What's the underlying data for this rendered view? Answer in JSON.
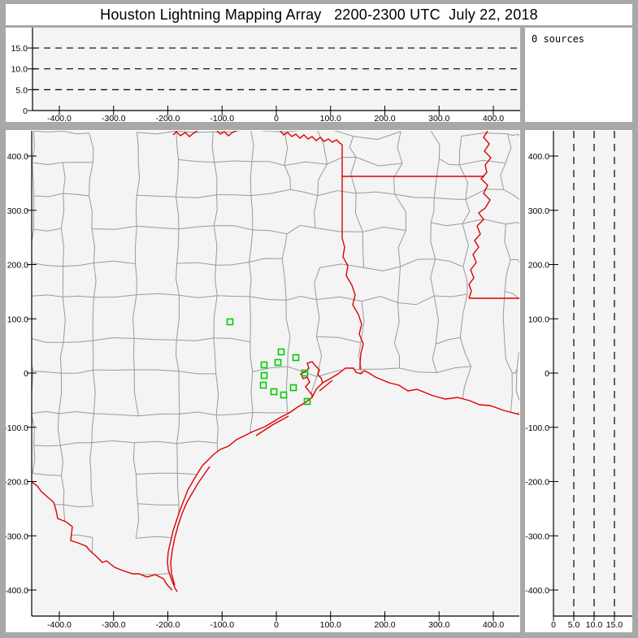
{
  "title": "Houston Lightning Mapping Array   2200-2300 UTC  July 22, 2018",
  "sources": {
    "label": "0 sources"
  },
  "colors": {
    "chrome": "#a8a8a8",
    "panel_background": "#ffffff",
    "plot_background": "#f4f4f4",
    "axis": "#000000",
    "gridline": "#000000",
    "county_line": "#9a9a9a",
    "state_border": "#dd0000",
    "station_marker": "#00cc00"
  },
  "chart_data": [
    {
      "panel": "altitude-vs-east-west",
      "type": "scatter",
      "points": [],
      "x_ticks": [
        -400,
        -300,
        -200,
        -100,
        0,
        100,
        200,
        300,
        400
      ],
      "x_tick_labels": [
        "-400.0",
        "-300.0",
        "-200.0",
        "-100.0",
        "0",
        "100.0",
        "200.0",
        "300.0",
        "400.0"
      ],
      "y_ticks": [
        0,
        5,
        10,
        15
      ],
      "y_tick_labels": [
        "0",
        "5.0",
        "10.0",
        "15.0"
      ],
      "y_gridlines": [
        5,
        10,
        15
      ],
      "x_range": [
        -451,
        449
      ],
      "y_range": [
        0,
        20
      ],
      "grid_style": "dashed"
    },
    {
      "panel": "plan-view-map",
      "type": "scatter",
      "points": [],
      "x_ticks": [
        -400,
        -300,
        -200,
        -100,
        0,
        100,
        200,
        300,
        400
      ],
      "x_tick_labels": [
        "-400.0",
        "-300.0",
        "-200.0",
        "-100.0",
        "0",
        "100.0",
        "200.0",
        "300.0",
        "400.0"
      ],
      "y_ticks": [
        400,
        300,
        200,
        100,
        0,
        -100,
        -200,
        -300,
        -400
      ],
      "y_tick_labels": [
        "400.0",
        "300.0",
        "200.0",
        "100.0",
        "0",
        "-100.0",
        "-200.0",
        "-300.0",
        "-400.0"
      ],
      "x_range": [
        -451,
        449
      ],
      "y_range": [
        -448,
        446
      ],
      "stations_km": [
        [
          -85.4,
          94.4
        ],
        [
          9.0,
          39.0
        ],
        [
          36.0,
          28.5
        ],
        [
          3.0,
          19.5
        ],
        [
          -22.5,
          15.0
        ],
        [
          -22.5,
          -4.5
        ],
        [
          52.4,
          0.0
        ],
        [
          -24.0,
          -22.5
        ],
        [
          -4.5,
          -34.5
        ],
        [
          31.5,
          -27.0
        ],
        [
          13.5,
          -40.5
        ],
        [
          56.9,
          -52.4
        ]
      ]
    },
    {
      "panel": "altitude-vs-north-south",
      "type": "scatter",
      "points": [],
      "x_ticks": [
        0,
        5,
        10,
        15
      ],
      "x_tick_labels": [
        "0",
        "5.0",
        "10.0",
        "15.0"
      ],
      "y_ticks": [
        400,
        300,
        200,
        100,
        0,
        -100,
        -200,
        -300,
        -400
      ],
      "y_tick_labels": [
        "400.0",
        "300.0",
        "200.0",
        "100.0",
        "0",
        "-100.0",
        "-200.0",
        "-300.0",
        "-400.0"
      ],
      "x_gridlines": [
        5,
        10,
        15
      ],
      "x_range": [
        0,
        19.5
      ],
      "y_range": [
        -448,
        446
      ],
      "grid_style": "dashed"
    }
  ]
}
